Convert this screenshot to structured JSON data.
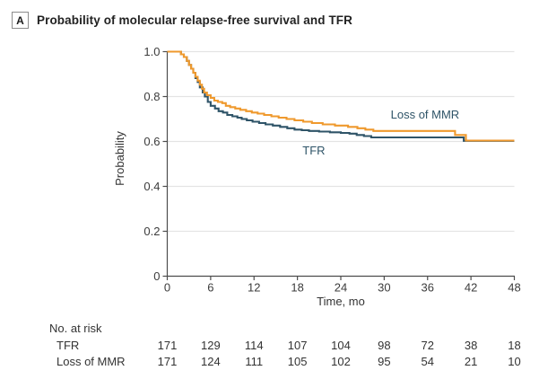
{
  "figure": {
    "panel_label": "A",
    "title": "Probability of molecular relapse-free survival and TFR"
  },
  "chart_data": {
    "type": "line",
    "variant": "kaplan_meier_step",
    "title": "Probability of molecular relapse-free survival and TFR",
    "xlabel": "Time, mo",
    "ylabel": "Probability",
    "xlim": [
      0,
      48
    ],
    "ylim": [
      0,
      1.0
    ],
    "xticks": [
      0,
      6,
      12,
      18,
      24,
      30,
      36,
      42,
      48
    ],
    "yticks": [
      0,
      0.2,
      0.4,
      0.6,
      0.8,
      1.0
    ],
    "ytick_labels": [
      "0",
      "0.2",
      "0.4",
      "0.6",
      "0.8",
      "1.0"
    ],
    "grid": "horizontal_only",
    "legend_position": "inline_labels",
    "colors": {
      "tfr_line": "#2F5468",
      "loss_of_mmr_line": "#EF992D",
      "gridline": "#E4E4E4",
      "axis": "#4D4D4D",
      "tick_text": "#3C3C3C",
      "label_text": "#2F5468"
    },
    "series": [
      {
        "id": "tfr",
        "name": "TFR",
        "color": "#2F5468",
        "label": {
          "text": "TFR",
          "t": 18.7,
          "p": 0.542
        },
        "points": [
          [
            0,
            1.0
          ],
          [
            1.5,
            1.0
          ],
          [
            1.9,
            0.988
          ],
          [
            2.3,
            0.976
          ],
          [
            2.7,
            0.959
          ],
          [
            3.0,
            0.941
          ],
          [
            3.3,
            0.924
          ],
          [
            3.6,
            0.906
          ],
          [
            3.9,
            0.882
          ],
          [
            4.2,
            0.865
          ],
          [
            4.5,
            0.841
          ],
          [
            4.9,
            0.818
          ],
          [
            5.2,
            0.8
          ],
          [
            5.6,
            0.776
          ],
          [
            6.0,
            0.759
          ],
          [
            6.6,
            0.747
          ],
          [
            7.1,
            0.735
          ],
          [
            7.7,
            0.729
          ],
          [
            8.3,
            0.718
          ],
          [
            9.0,
            0.712
          ],
          [
            9.7,
            0.706
          ],
          [
            10.3,
            0.7
          ],
          [
            11.0,
            0.694
          ],
          [
            11.8,
            0.688
          ],
          [
            12.7,
            0.682
          ],
          [
            13.6,
            0.676
          ],
          [
            14.6,
            0.671
          ],
          [
            15.6,
            0.665
          ],
          [
            16.6,
            0.659
          ],
          [
            17.6,
            0.653
          ],
          [
            18.6,
            0.65
          ],
          [
            19.6,
            0.647
          ],
          [
            21.0,
            0.644
          ],
          [
            22.5,
            0.641
          ],
          [
            24.0,
            0.638
          ],
          [
            25.2,
            0.635
          ],
          [
            26.2,
            0.629
          ],
          [
            27.2,
            0.624
          ],
          [
            28.2,
            0.618
          ],
          [
            41.0,
            0.603
          ],
          [
            48,
            0.603
          ]
        ]
      },
      {
        "id": "loss-of-mmr",
        "name": "Loss of MMR",
        "color": "#EF992D",
        "label": {
          "text": "Loss of MMR",
          "t": 30.9,
          "p": 0.702
        },
        "points": [
          [
            0,
            1.0
          ],
          [
            1.5,
            1.0
          ],
          [
            1.9,
            0.988
          ],
          [
            2.3,
            0.976
          ],
          [
            2.7,
            0.959
          ],
          [
            3.0,
            0.941
          ],
          [
            3.3,
            0.924
          ],
          [
            3.6,
            0.906
          ],
          [
            3.9,
            0.888
          ],
          [
            4.2,
            0.871
          ],
          [
            4.5,
            0.853
          ],
          [
            4.8,
            0.835
          ],
          [
            5.1,
            0.818
          ],
          [
            5.5,
            0.806
          ],
          [
            6.0,
            0.794
          ],
          [
            6.5,
            0.782
          ],
          [
            7.0,
            0.776
          ],
          [
            7.6,
            0.771
          ],
          [
            8.1,
            0.759
          ],
          [
            8.7,
            0.753
          ],
          [
            9.4,
            0.747
          ],
          [
            10.1,
            0.741
          ],
          [
            10.9,
            0.735
          ],
          [
            11.7,
            0.729
          ],
          [
            12.5,
            0.724
          ],
          [
            13.4,
            0.718
          ],
          [
            14.4,
            0.712
          ],
          [
            15.4,
            0.706
          ],
          [
            16.5,
            0.7
          ],
          [
            17.6,
            0.694
          ],
          [
            18.8,
            0.688
          ],
          [
            20.0,
            0.682
          ],
          [
            21.5,
            0.676
          ],
          [
            23.2,
            0.671
          ],
          [
            25.0,
            0.665
          ],
          [
            26.3,
            0.659
          ],
          [
            27.4,
            0.653
          ],
          [
            28.5,
            0.647
          ],
          [
            39.8,
            0.629
          ],
          [
            41.3,
            0.604
          ],
          [
            48,
            0.604
          ]
        ]
      }
    ],
    "risk_table": {
      "title": "No. at risk",
      "times": [
        0,
        6,
        12,
        18,
        24,
        30,
        36,
        42,
        48
      ],
      "rows": [
        {
          "label": "TFR",
          "counts": [
            171,
            129,
            114,
            107,
            104,
            98,
            72,
            38,
            18
          ]
        },
        {
          "label": "Loss of MMR",
          "counts": [
            171,
            124,
            111,
            105,
            102,
            95,
            54,
            21,
            10
          ]
        }
      ]
    }
  }
}
